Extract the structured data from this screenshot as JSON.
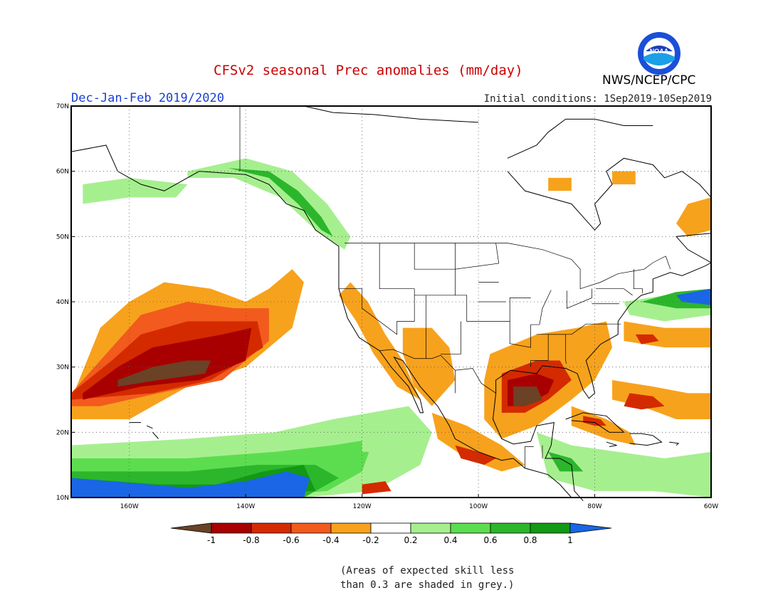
{
  "header": {
    "title": "CFSv2 seasonal Prec anomalies (mm/day)",
    "season": "Dec-Jan-Feb 2019/2020",
    "initial_conditions": "Initial conditions: 1Sep2019-10Sep2019",
    "agency": "NWS/NCEP/CPC",
    "logo_text": "NOAA"
  },
  "map": {
    "region": "North America and Eastern Pacific",
    "lon_range": [
      -170,
      -60
    ],
    "lat_range": [
      10,
      70
    ],
    "lat_ticks": [
      "70N",
      "60N",
      "50N",
      "40N",
      "30N",
      "20N",
      "10N"
    ],
    "lon_ticks": [
      "160W",
      "140W",
      "120W",
      "100W",
      "80W",
      "60W"
    ],
    "grid": "dotted"
  },
  "colorbar": {
    "labels": [
      "-1",
      "-0.8",
      "-0.6",
      "-0.4",
      "-0.2",
      "0.2",
      "0.4",
      "0.6",
      "0.8",
      "1"
    ],
    "colors": [
      "#6b4226",
      "#a80000",
      "#d42a00",
      "#f25a1e",
      "#f7a21c",
      "#ffffff",
      "#a6ef8f",
      "#5cdd4f",
      "#2cb62c",
      "#139913",
      "#1a66e6"
    ]
  },
  "note": {
    "line1": "(Areas of expected skill less",
    "line2": "than 0.3 are shaded in grey.)"
  }
}
